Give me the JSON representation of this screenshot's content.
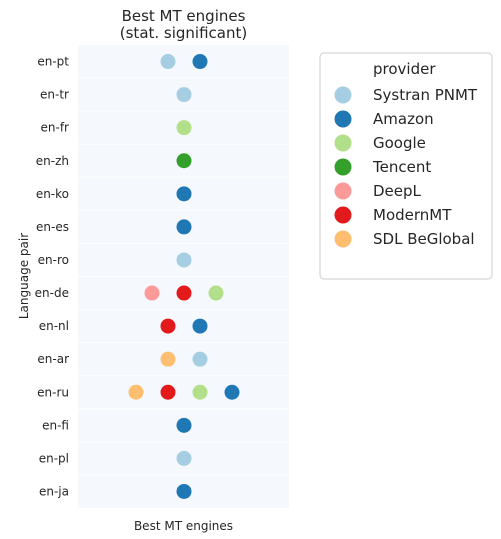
{
  "chart_data": {
    "type": "scatter",
    "title_line1": "Best MT engines",
    "title_line2": "(stat. significant)",
    "xlabel": "Best MT engines",
    "ylabel": "Language pair",
    "grid": false,
    "legend_placement": "right",
    "legend": {
      "title": "provider",
      "entries": [
        {
          "name": "Systran PNMT",
          "color": "#a6cee3"
        },
        {
          "name": "Amazon",
          "color": "#1f78b4"
        },
        {
          "name": "Google",
          "color": "#b2df8a"
        },
        {
          "name": "Tencent",
          "color": "#33a02c"
        },
        {
          "name": "DeepL",
          "color": "#fb9a99"
        },
        {
          "name": "ModernMT",
          "color": "#e31a1c"
        },
        {
          "name": "SDL BeGlobal",
          "color": "#fdbf6f"
        }
      ]
    },
    "categories": [
      "en-pt",
      "en-tr",
      "en-fr",
      "en-zh",
      "en-ko",
      "en-es",
      "en-ro",
      "en-de",
      "en-nl",
      "en-ar",
      "en-ru",
      "en-fi",
      "en-pl",
      "en-ja"
    ],
    "rows": [
      [
        "Systran PNMT",
        "Amazon"
      ],
      [
        "Systran PNMT"
      ],
      [
        "Google"
      ],
      [
        "Tencent"
      ],
      [
        "Amazon"
      ],
      [
        "Amazon"
      ],
      [
        "Systran PNMT"
      ],
      [
        "DeepL",
        "ModernMT",
        "Google"
      ],
      [
        "ModernMT",
        "Amazon"
      ],
      [
        "SDL BeGlobal",
        "Systran PNMT"
      ],
      [
        "SDL BeGlobal",
        "ModernMT",
        "Google",
        "Amazon"
      ],
      [
        "Amazon"
      ],
      [
        "Systran PNMT"
      ],
      [
        "Amazon"
      ]
    ]
  }
}
